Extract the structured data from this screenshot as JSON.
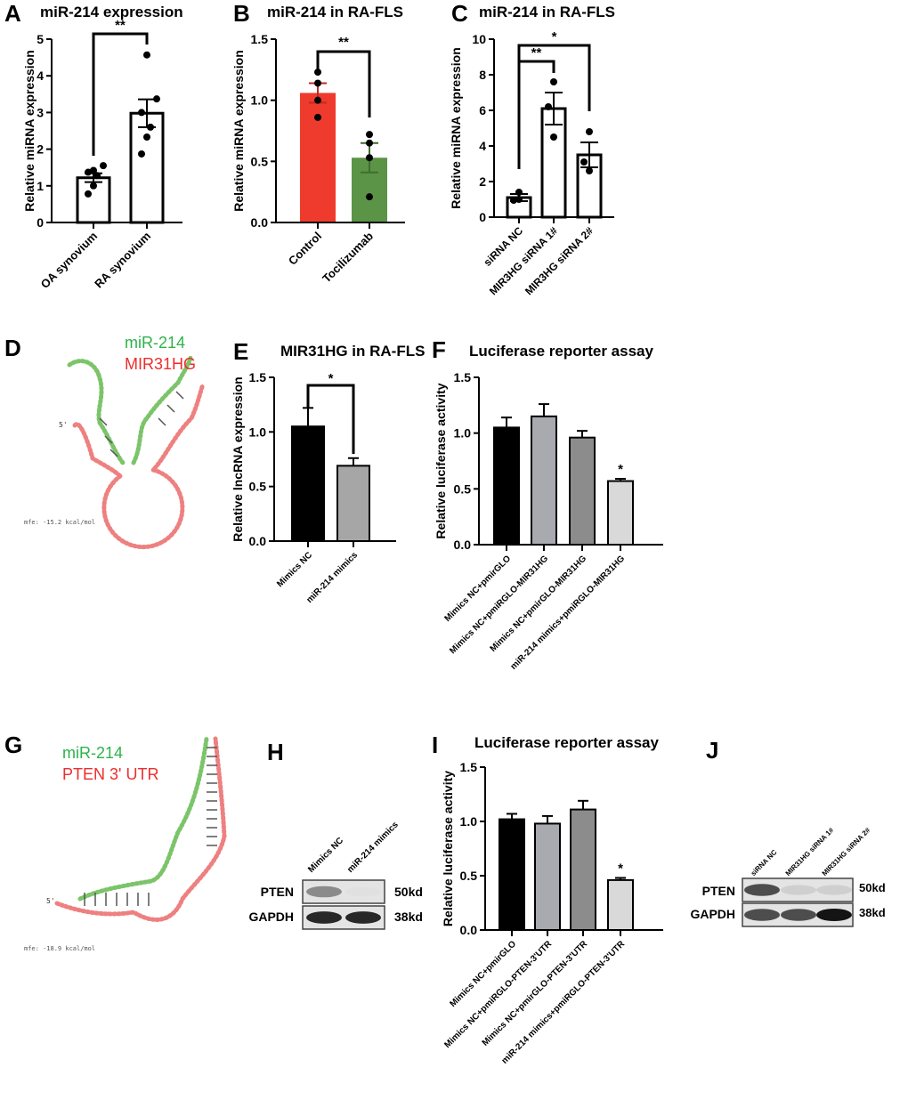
{
  "panel_letters": [
    "A",
    "B",
    "C",
    "D",
    "E",
    "F",
    "G",
    "H",
    "I",
    "J"
  ],
  "rna_d": {
    "legend_green": "miR-214",
    "legend_red": "MIR31HG",
    "five_prime": "5'",
    "mfe": "mfe: -15.2 kcal/mol"
  },
  "rna_g": {
    "legend_green": "miR-214",
    "legend_red": "PTEN 3'  UTR",
    "five_prime": "5'",
    "mfe": "mfe: -18.9 kcal/mol"
  },
  "blot_h": {
    "lanes": [
      "Mimics NC",
      "miR-214 mimics"
    ],
    "rows": [
      {
        "protein": "PTEN",
        "size": "50kd",
        "intensity": [
          0.65,
          0.05
        ]
      },
      {
        "protein": "GAPDH",
        "size": "38kd",
        "intensity": [
          0.95,
          0.95
        ]
      }
    ]
  },
  "blot_j": {
    "lanes": [
      "siRNA NC",
      "MIR31HG siRNA 1#",
      "MIR31HG siRNA 2#"
    ],
    "rows": [
      {
        "protein": "PTEN",
        "size": "50kd",
        "intensity": [
          0.85,
          0.3,
          0.3
        ]
      },
      {
        "protein": "GAPDH",
        "size": "38kd",
        "intensity": [
          0.85,
          0.85,
          1.0
        ]
      }
    ]
  },
  "chart_data": [
    {
      "id": "A",
      "type": "bar",
      "title": "miR-214 expression",
      "ylabel": "Relative miRNA expression",
      "ylim": [
        0,
        5
      ],
      "yticks": [
        "0",
        "1",
        "2",
        "3",
        "4",
        "5"
      ],
      "categories": [
        "OA synovium",
        "RA synovium"
      ],
      "values": [
        1.22,
        2.98
      ],
      "sem": [
        0.12,
        0.38
      ],
      "points": [
        [
          1.42,
          1.55,
          1.37,
          1.28,
          1.0,
          0.78
        ],
        [
          4.57,
          3.37,
          3.0,
          2.6,
          2.33,
          1.87
        ]
      ],
      "colors": [
        "#ffffff",
        "#ffffff"
      ],
      "significance": [
        {
          "groups": [
            0,
            1
          ],
          "label": "**"
        }
      ]
    },
    {
      "id": "B",
      "type": "bar",
      "title": "miR-214 in RA-FLS",
      "ylabel": "Relative miRNA expression",
      "ylim": [
        0,
        1.5
      ],
      "yticks": [
        "0.0",
        "0.5",
        "1.0",
        "1.5"
      ],
      "categories": [
        "Control",
        "Tocilizumab"
      ],
      "values": [
        1.06,
        0.53
      ],
      "sem": [
        0.08,
        0.12
      ],
      "points": [
        [
          1.23,
          1.14,
          1.0,
          0.86
        ],
        [
          0.72,
          0.65,
          0.53,
          0.21
        ]
      ],
      "colors": [
        "#ee3b2e",
        "#5b9447"
      ],
      "significance": [
        {
          "groups": [
            0,
            1
          ],
          "label": "**"
        }
      ]
    },
    {
      "id": "C",
      "type": "bar",
      "title": "miR-214 in RA-FLS",
      "ylabel": "Relative miRNA expression",
      "ylim": [
        0,
        10
      ],
      "yticks": [
        "0",
        "2",
        "4",
        "6",
        "8",
        "10"
      ],
      "categories": [
        "siRNA NC",
        "MIR3HG siRNA 1#",
        "MIR3HG siRNA 2#"
      ],
      "values": [
        1.1,
        6.1,
        3.5
      ],
      "sem": [
        0.2,
        0.9,
        0.7
      ],
      "points": [
        [
          1.4,
          0.95,
          1.0
        ],
        [
          7.6,
          6.2,
          4.5
        ],
        [
          4.8,
          3.1,
          2.6
        ]
      ],
      "colors": [
        "#ffffff",
        "#ffffff",
        "#ffffff"
      ],
      "significance": [
        {
          "groups": [
            0,
            1
          ],
          "label": "**"
        },
        {
          "groups": [
            0,
            2
          ],
          "label": "*"
        }
      ]
    },
    {
      "id": "E",
      "type": "bar",
      "title": "MIR31HG in RA-FLS",
      "ylabel": "Relative lncRNA expression",
      "ylim": [
        0,
        1.5
      ],
      "yticks": [
        "0.0",
        "0.5",
        "1.0",
        "1.5"
      ],
      "categories": [
        "Mimics NC",
        "miR-214 mimics"
      ],
      "values": [
        1.05,
        0.69
      ],
      "sem": [
        0.17,
        0.07
      ],
      "colors": [
        "#000000",
        "#a6a6a6"
      ],
      "significance": [
        {
          "groups": [
            0,
            1
          ],
          "label": "*"
        }
      ]
    },
    {
      "id": "F",
      "type": "bar",
      "title": "Luciferase reporter assay",
      "ylabel": "Relative luciferase activity",
      "ylim": [
        0,
        1.5
      ],
      "yticks": [
        "0.0",
        "0.5",
        "1.0",
        "1.5"
      ],
      "categories": [
        "Mimics NC+pmirGLO",
        "Mimics NC+pmiRGLO-MIR31HG",
        "Mimics NC+pmirGLO-MIR31HG",
        "miR-214 mimics+pmiRGLO-MIR31HG"
      ],
      "values": [
        1.05,
        1.15,
        0.96,
        0.57
      ],
      "sem": [
        0.09,
        0.11,
        0.06,
        0.02
      ],
      "colors": [
        "#000000",
        "#a9a9b0",
        "#8c8c8c",
        "#d9d9d9"
      ],
      "significance": [
        {
          "groups": [
            3
          ],
          "label": "*"
        }
      ]
    },
    {
      "id": "I",
      "type": "bar",
      "title": "Luciferase reporter assay",
      "ylabel": "Relative luciferase activity",
      "ylim": [
        0,
        1.5
      ],
      "yticks": [
        "0.0",
        "0.5",
        "1.0",
        "1.5"
      ],
      "categories": [
        "Mimics NC+pmirGLO",
        "Mimics NC+pmiRGLO-PTEN-3'UTR",
        "Mimics NC+pmirGLO-PTEN-3'UTR",
        "miR-214 mimics+pmiRGLO-PTEN-3'UTR"
      ],
      "values": [
        1.02,
        0.98,
        1.11,
        0.46
      ],
      "sem": [
        0.05,
        0.07,
        0.08,
        0.02
      ],
      "colors": [
        "#000000",
        "#a9a9b0",
        "#8c8c8c",
        "#d9d9d9"
      ],
      "significance": [
        {
          "groups": [
            3
          ],
          "label": "*"
        }
      ]
    }
  ]
}
